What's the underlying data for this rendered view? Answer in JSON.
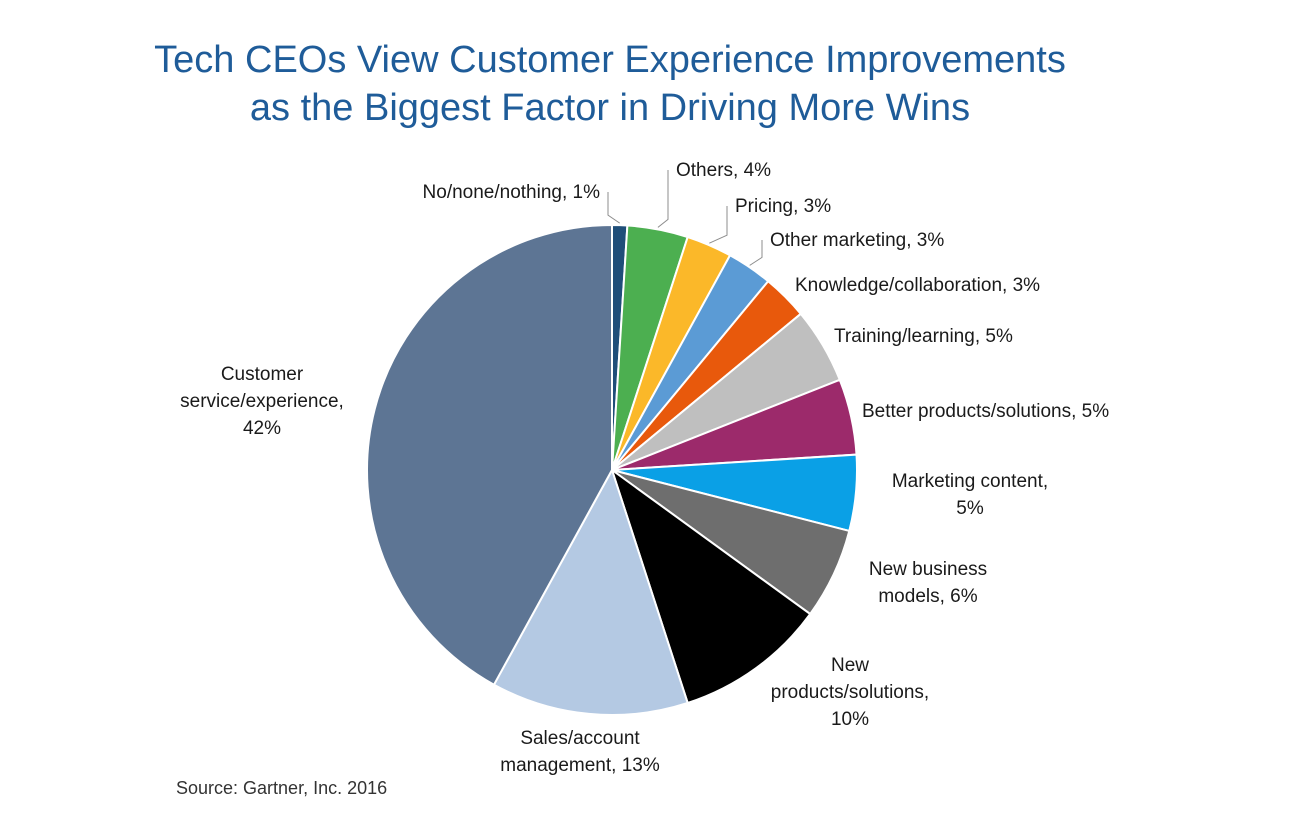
{
  "chart_data": {
    "type": "pie",
    "title_lines": [
      "Tech CEOs View Customer Experience Improvements",
      "as the Biggest Factor in Driving More Wins"
    ],
    "source": "Source: Gartner, Inc. 2016",
    "slices": [
      {
        "name": "No/none/nothing",
        "value": 1,
        "color": "#1f4e79",
        "label_lines": [
          "No/none/nothing, 1%"
        ]
      },
      {
        "name": "Others",
        "value": 4,
        "color": "#4caf50",
        "label_lines": [
          "Others, 4%"
        ]
      },
      {
        "name": "Pricing",
        "value": 3,
        "color": "#fbb829",
        "label_lines": [
          "Pricing, 3%"
        ]
      },
      {
        "name": "Other marketing",
        "value": 3,
        "color": "#5b9bd5",
        "label_lines": [
          "Other marketing, 3%"
        ]
      },
      {
        "name": "Knowledge/collaboration",
        "value": 3,
        "color": "#e8590c",
        "label_lines": [
          "Knowledge/collaboration, 3%"
        ]
      },
      {
        "name": "Training/learning",
        "value": 5,
        "color": "#bfbfbf",
        "label_lines": [
          "Training/learning,  5%"
        ]
      },
      {
        "name": "Better products/solutions",
        "value": 5,
        "color": "#9c2a6b",
        "label_lines": [
          "Better products/solutions, 5%"
        ]
      },
      {
        "name": "Marketing content",
        "value": 5,
        "color": "#0aa0e6",
        "label_lines": [
          "Marketing  content,",
          "5%"
        ]
      },
      {
        "name": "New business models",
        "value": 6,
        "color": "#6e6e6e",
        "label_lines": [
          "New business",
          "models, 6%"
        ]
      },
      {
        "name": "New products/solutions",
        "value": 10,
        "color": "#000000",
        "label_lines": [
          "New",
          "products/solutions,",
          "10%"
        ]
      },
      {
        "name": "Sales/account management",
        "value": 13,
        "color": "#b4c9e3",
        "label_lines": [
          "Sales/account",
          "management, 13%"
        ]
      },
      {
        "name": "Customer service/experience",
        "value": 42,
        "color": "#5d7594",
        "label_lines": [
          "Customer",
          "service/experience,",
          "42%"
        ]
      }
    ]
  }
}
